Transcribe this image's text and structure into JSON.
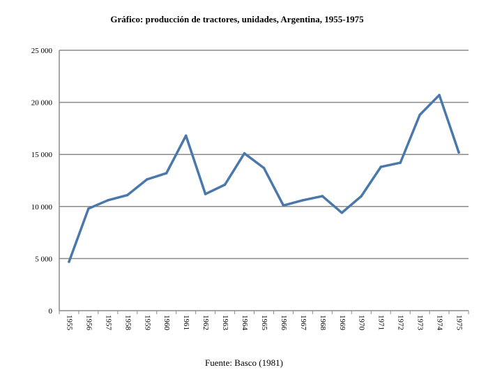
{
  "chart_data": {
    "type": "line",
    "title": "Gráfico: producción de tractores, unidades, Argentina, 1955-1975",
    "source": "Fuente: Basco (1981)",
    "xlabel": "",
    "ylabel": "",
    "ylim": [
      0,
      25000
    ],
    "grid": true,
    "line_color": "#4a78ab",
    "y_ticks": [
      {
        "value": 0,
        "label": "0"
      },
      {
        "value": 5000,
        "label": "5 000"
      },
      {
        "value": 10000,
        "label": "10 000"
      },
      {
        "value": 15000,
        "label": "15 000"
      },
      {
        "value": 20000,
        "label": "20 000"
      },
      {
        "value": 25000,
        "label": "25 000"
      }
    ],
    "categories": [
      "1955",
      "1956",
      "1957",
      "1958",
      "1959",
      "1960",
      "1961",
      "1962",
      "1963",
      "1964",
      "1965",
      "1966",
      "1967",
      "1968",
      "1969",
      "1970",
      "1971",
      "1972",
      "1973",
      "1974",
      "1975"
    ],
    "series": [
      {
        "name": "Producción de tractores",
        "values": [
          4700,
          9800,
          10600,
          11100,
          12600,
          13200,
          16800,
          11200,
          12100,
          15100,
          13700,
          10100,
          10600,
          11000,
          9400,
          11000,
          13800,
          14200,
          18800,
          20700,
          15200
        ]
      }
    ]
  }
}
